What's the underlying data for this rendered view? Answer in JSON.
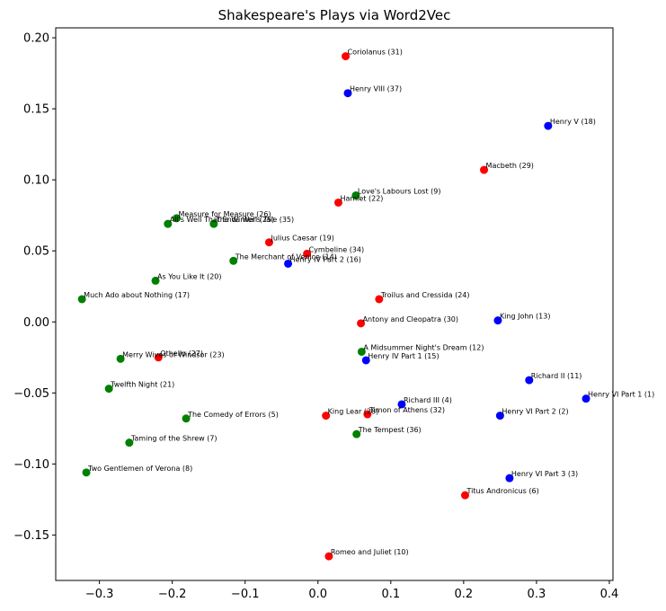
{
  "chart_data": {
    "type": "scatter",
    "title": "Shakespeare's Plays via Word2Vec",
    "xlabel": "",
    "ylabel": "",
    "xlim": [
      -0.36,
      0.405
    ],
    "ylim": [
      -0.182,
      0.207
    ],
    "grid": false,
    "x_ticks": [
      -0.3,
      -0.2,
      -0.1,
      0.0,
      0.1,
      0.2,
      0.3,
      0.4
    ],
    "x_tick_labels": [
      "−0.3",
      "−0.2",
      "−0.1",
      "0.0",
      "0.1",
      "0.2",
      "0.3",
      "0.4"
    ],
    "y_ticks": [
      -0.15,
      -0.1,
      -0.05,
      0.0,
      0.05,
      0.1,
      0.15,
      0.2
    ],
    "y_tick_labels": [
      "−0.15",
      "−0.10",
      "−0.05",
      "0.00",
      "0.05",
      "0.10",
      "0.15",
      "0.20"
    ],
    "colors": {
      "tragedy": "#ff0000",
      "history": "#0000ff",
      "comedy": "#008000"
    },
    "points": [
      {
        "label": "Coriolanus (31)",
        "x": 0.038,
        "y": 0.187,
        "group": "tragedy"
      },
      {
        "label": "Henry VIII (37)",
        "x": 0.041,
        "y": 0.161,
        "group": "history"
      },
      {
        "label": "Henry V (18)",
        "x": 0.316,
        "y": 0.138,
        "group": "history"
      },
      {
        "label": "Macbeth (29)",
        "x": 0.228,
        "y": 0.107,
        "group": "tragedy"
      },
      {
        "label": "Love's Labours Lost (9)",
        "x": 0.052,
        "y": 0.089,
        "group": "comedy"
      },
      {
        "label": "Hamlet (22)",
        "x": 0.028,
        "y": 0.084,
        "group": "tragedy"
      },
      {
        "label": "Measure for Measure (26)",
        "x": -0.194,
        "y": 0.073,
        "group": "comedy"
      },
      {
        "label": "All's Well That Ends Well (25)",
        "x": -0.206,
        "y": 0.069,
        "group": "comedy"
      },
      {
        "label": "The Winter's Tale (35)",
        "x": -0.143,
        "y": 0.069,
        "group": "comedy"
      },
      {
        "label": "Julius Caesar (19)",
        "x": -0.067,
        "y": 0.056,
        "group": "tragedy"
      },
      {
        "label": "Cymbeline (34)",
        "x": -0.015,
        "y": 0.048,
        "group": "tragedy"
      },
      {
        "label": "The Merchant of Venice (14)",
        "x": -0.116,
        "y": 0.043,
        "group": "comedy"
      },
      {
        "label": "Henry IV Part 2 (16)",
        "x": -0.041,
        "y": 0.041,
        "group": "history"
      },
      {
        "label": "As You Like It (20)",
        "x": -0.223,
        "y": 0.029,
        "group": "comedy"
      },
      {
        "label": "Much Ado about Nothing (17)",
        "x": -0.324,
        "y": 0.016,
        "group": "comedy"
      },
      {
        "label": "Troilus and Cressida (24)",
        "x": 0.084,
        "y": 0.016,
        "group": "tragedy"
      },
      {
        "label": "Antony and Cleopatra (30)",
        "x": 0.059,
        "y": -0.001,
        "group": "tragedy"
      },
      {
        "label": "King John (13)",
        "x": 0.247,
        "y": 0.001,
        "group": "history"
      },
      {
        "label": "A Midsummer Night's Dream (12)",
        "x": 0.06,
        "y": -0.021,
        "group": "comedy"
      },
      {
        "label": "Henry IV Part 1 (15)",
        "x": 0.066,
        "y": -0.027,
        "group": "history"
      },
      {
        "label": "Othello (27)",
        "x": -0.219,
        "y": -0.025,
        "group": "tragedy"
      },
      {
        "label": "Merry Wives of Windsor (23)",
        "x": -0.271,
        "y": -0.026,
        "group": "comedy"
      },
      {
        "label": "Richard II (11)",
        "x": 0.29,
        "y": -0.041,
        "group": "history"
      },
      {
        "label": "Henry VI Part 1 (1)",
        "x": 0.368,
        "y": -0.054,
        "group": "history"
      },
      {
        "label": "Twelfth Night (21)",
        "x": -0.287,
        "y": -0.047,
        "group": "comedy"
      },
      {
        "label": "Richard III (4)",
        "x": 0.115,
        "y": -0.058,
        "group": "history"
      },
      {
        "label": "Timon of Athens (32)",
        "x": 0.068,
        "y": -0.065,
        "group": "tragedy"
      },
      {
        "label": "King Lear (28)",
        "x": 0.011,
        "y": -0.066,
        "group": "tragedy"
      },
      {
        "label": "Henry VI Part 2 (2)",
        "x": 0.25,
        "y": -0.066,
        "group": "history"
      },
      {
        "label": "The Comedy of Errors (5)",
        "x": -0.181,
        "y": -0.068,
        "group": "comedy"
      },
      {
        "label": "The Tempest (36)",
        "x": 0.053,
        "y": -0.079,
        "group": "comedy"
      },
      {
        "label": "Taming of the Shrew (7)",
        "x": -0.259,
        "y": -0.085,
        "group": "comedy"
      },
      {
        "label": "Two Gentlemen of Verona (8)",
        "x": -0.318,
        "y": -0.106,
        "group": "comedy"
      },
      {
        "label": "Henry VI Part 3 (3)",
        "x": 0.263,
        "y": -0.11,
        "group": "history"
      },
      {
        "label": "Titus Andronicus (6)",
        "x": 0.202,
        "y": -0.122,
        "group": "tragedy"
      },
      {
        "label": "Romeo and Juliet (10)",
        "x": 0.015,
        "y": -0.165,
        "group": "tragedy"
      }
    ]
  }
}
